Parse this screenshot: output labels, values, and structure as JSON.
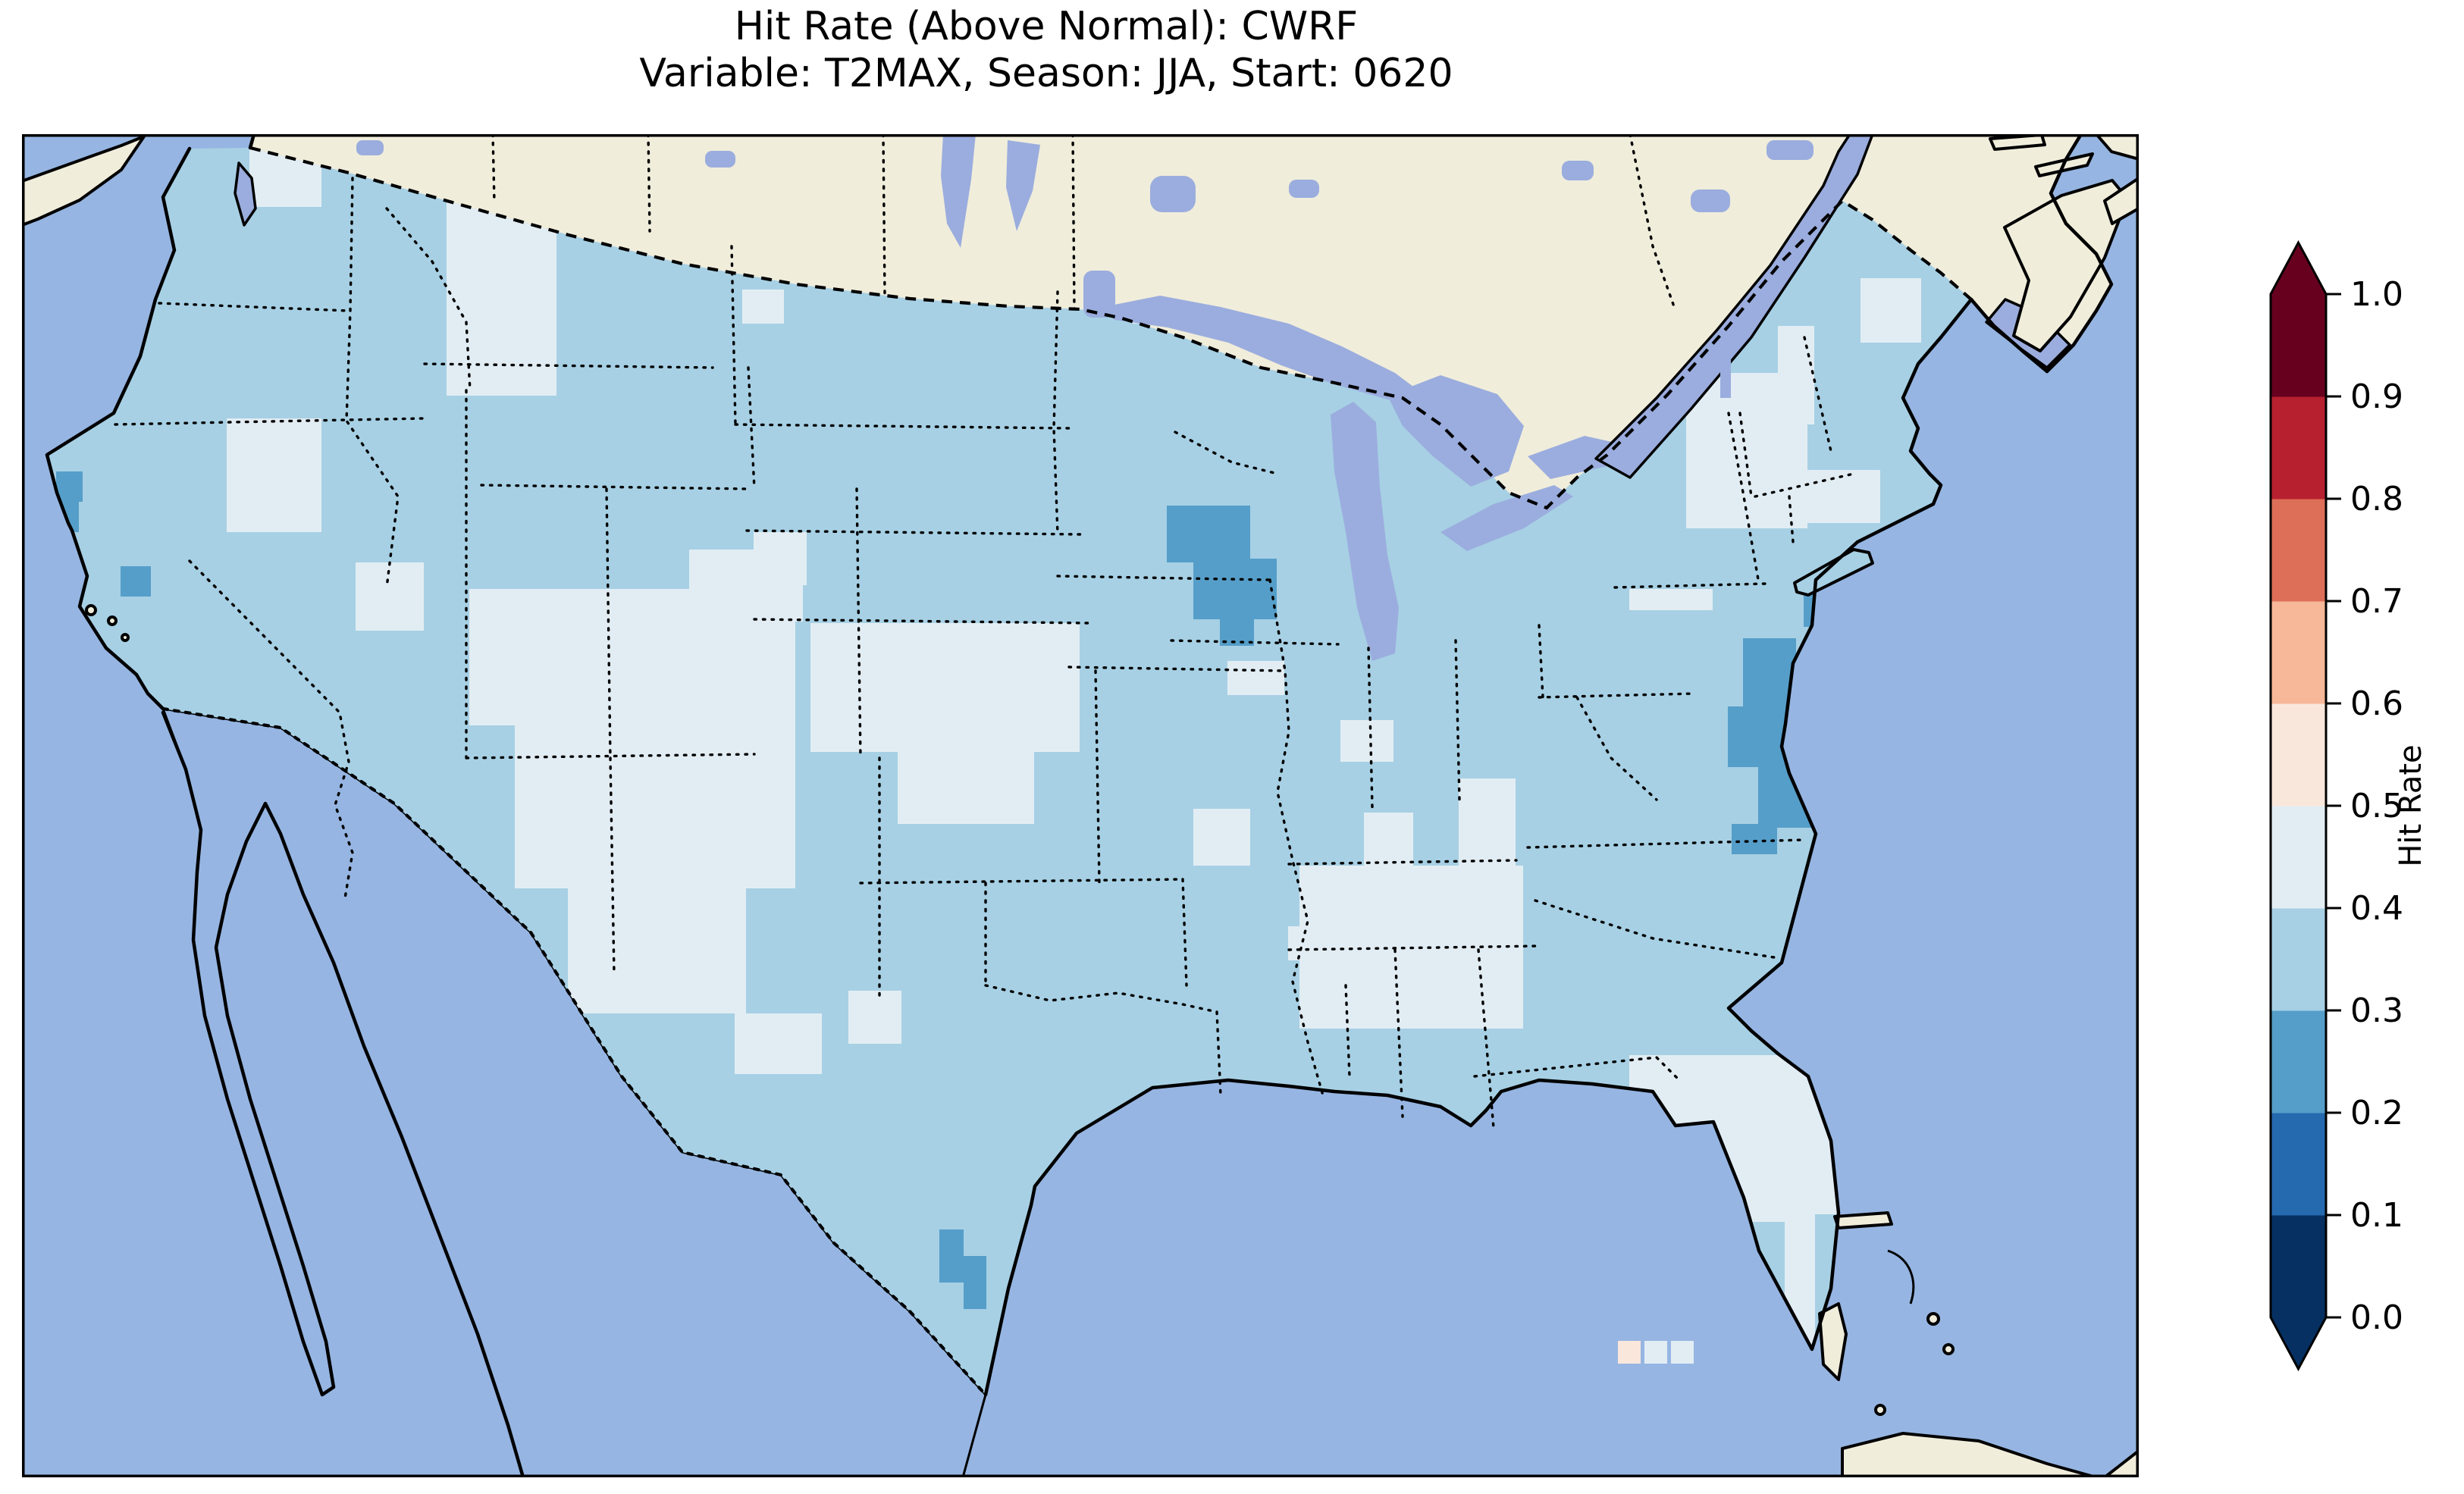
{
  "title": {
    "line1": "Hit Rate (Above Normal): CWRF",
    "line2": "Variable: T2MAX, Season: JJA, Start: 0620"
  },
  "chart_data": {
    "type": "heatmap",
    "subtype": "geographic_gridded_map",
    "metric": "Hit Rate (Above Normal)",
    "model": "CWRF",
    "variable": "T2MAX",
    "season": "JJA",
    "start": "0620",
    "region": "Continental United States with surrounding Canada, Mexico, Atlantic and Pacific margins",
    "legend_position": "right vertical colorbar with triangular extend arrows at both ends",
    "colorbar": {
      "label": "Hit Rate",
      "ticks": [
        0.0,
        0.1,
        0.2,
        0.3,
        0.4,
        0.5,
        0.6,
        0.7,
        0.8,
        0.9,
        1.0
      ],
      "range": [
        0.0,
        1.0
      ],
      "extend": "both",
      "bins": [
        "0.0-0.1",
        "0.1-0.2",
        "0.2-0.3",
        "0.3-0.4",
        "0.4-0.5",
        "0.5-0.6",
        "0.6-0.7",
        "0.7-0.8",
        "0.8-0.9",
        "0.9-1.0"
      ],
      "bin_colors": [
        "#053061",
        "#2569af",
        "#559ec9",
        "#a7d0e4",
        "#e2edf3",
        "#fae7dc",
        "#f7b799",
        "#dd6f59",
        "#b6202f",
        "#67001f"
      ],
      "under_color": "#053061",
      "over_color": "#67001f"
    },
    "map_colors": {
      "ocean": "#96b5e2",
      "land_non_us": "#f0eddb",
      "lakes": "#9badde",
      "coastline": "#000000"
    },
    "dominant_bin": "0.3-0.4",
    "observations": [
      "Most of CONUS sits in the 0.3-0.4 hit-rate bin (light blue).",
      "Large 0.4-0.5 (very pale) regions over Colorado Plateau / Four Corners, western Kansas-Nebraska, central Tennessee-Kentucky, Florida peninsula, western Washington, upstate New York / New England and central Oregon/Idaho spots.",
      "0.2-0.3 (darker blue) pockets over central Wisconsin, Chesapeake Bay / coastal Virginia, southern Texas coast, a few northern California coastal cells and near New York City.",
      "Isolated 0.5-0.6 and 0.6-0.7 (pink/peach) cells near the Mississippi River delta and south of the Florida Keys."
    ],
    "value_patches": [
      [
        4,
        560,
        55,
        145,
        290
      ],
      [
        4,
        300,
        18,
        95,
        78
      ],
      [
        4,
        270,
        375,
        125,
        150
      ],
      [
        4,
        440,
        565,
        90,
        90
      ],
      [
        4,
        950,
        205,
        55,
        45
      ],
      [
        4,
        1465,
        205,
        75,
        45
      ],
      [
        4,
        965,
        525,
        70,
        70
      ],
      [
        4,
        880,
        548,
        150,
        95
      ],
      [
        4,
        590,
        600,
        430,
        180
      ],
      [
        4,
        650,
        780,
        370,
        215
      ],
      [
        4,
        720,
        995,
        235,
        165
      ],
      [
        4,
        940,
        1160,
        115,
        80
      ],
      [
        4,
        1040,
        645,
        355,
        170
      ],
      [
        4,
        1155,
        815,
        180,
        95
      ],
      [
        4,
        1090,
        1130,
        70,
        70
      ],
      [
        4,
        1670,
        1045,
        45,
        45
      ],
      [
        4,
        1545,
        890,
        75,
        75
      ],
      [
        4,
        1590,
        695,
        75,
        45
      ],
      [
        4,
        1685,
        965,
        295,
        215
      ],
      [
        4,
        1895,
        850,
        75,
        120
      ],
      [
        4,
        1770,
        895,
        65,
        75
      ],
      [
        4,
        1739,
        773,
        70,
        55
      ],
      [
        4,
        2120,
        600,
        110,
        28
      ],
      [
        4,
        2195,
        315,
        160,
        205
      ],
      [
        4,
        2316,
        253,
        48,
        130
      ],
      [
        4,
        2351,
        443,
        100,
        70
      ],
      [
        4,
        2425,
        190,
        80,
        85
      ],
      [
        4,
        2120,
        1215,
        275,
        210
      ],
      [
        4,
        2165,
        1420,
        200,
        200
      ],
      [
        4,
        1680,
        1375,
        55,
        35
      ],
      [
        4,
        2100,
        1330,
        45,
        55
      ],
      [
        4,
        2130,
        1385,
        40,
        45
      ],
      [
        3,
        2210,
        1435,
        115,
        125
      ],
      [
        2,
        1510,
        490,
        110,
        75
      ],
      [
        2,
        1545,
        560,
        110,
        80
      ],
      [
        2,
        1580,
        635,
        45,
        40
      ],
      [
        2,
        2270,
        665,
        70,
        95
      ],
      [
        2,
        2250,
        755,
        95,
        80
      ],
      [
        2,
        2290,
        830,
        110,
        85
      ],
      [
        2,
        2255,
        910,
        60,
        40
      ],
      [
        2,
        2350,
        600,
        35,
        50
      ],
      [
        2,
        45,
        445,
        35,
        40
      ],
      [
        2,
        45,
        485,
        30,
        40
      ],
      [
        2,
        130,
        570,
        40,
        40
      ],
      [
        2,
        105,
        790,
        35,
        30
      ],
      [
        2,
        1210,
        1445,
        32,
        70
      ],
      [
        2,
        1242,
        1480,
        30,
        70
      ],
      [
        5,
        1705,
        1390,
        35,
        35
      ],
      [
        6,
        1740,
        1400,
        30,
        30
      ]
    ],
    "unclipped_patches": [
      [
        5,
        2105,
        1592,
        30,
        30
      ],
      [
        4,
        2140,
        1592,
        30,
        30
      ],
      [
        4,
        2175,
        1592,
        30,
        30
      ]
    ],
    "patch_note": "Each patch is [color_bin_index, x, y, width, height] in map pixels (map area 2792x1772); bin index refers to colorbar.bins; base CONUS fill is bin 3 (0.3-0.4)."
  }
}
